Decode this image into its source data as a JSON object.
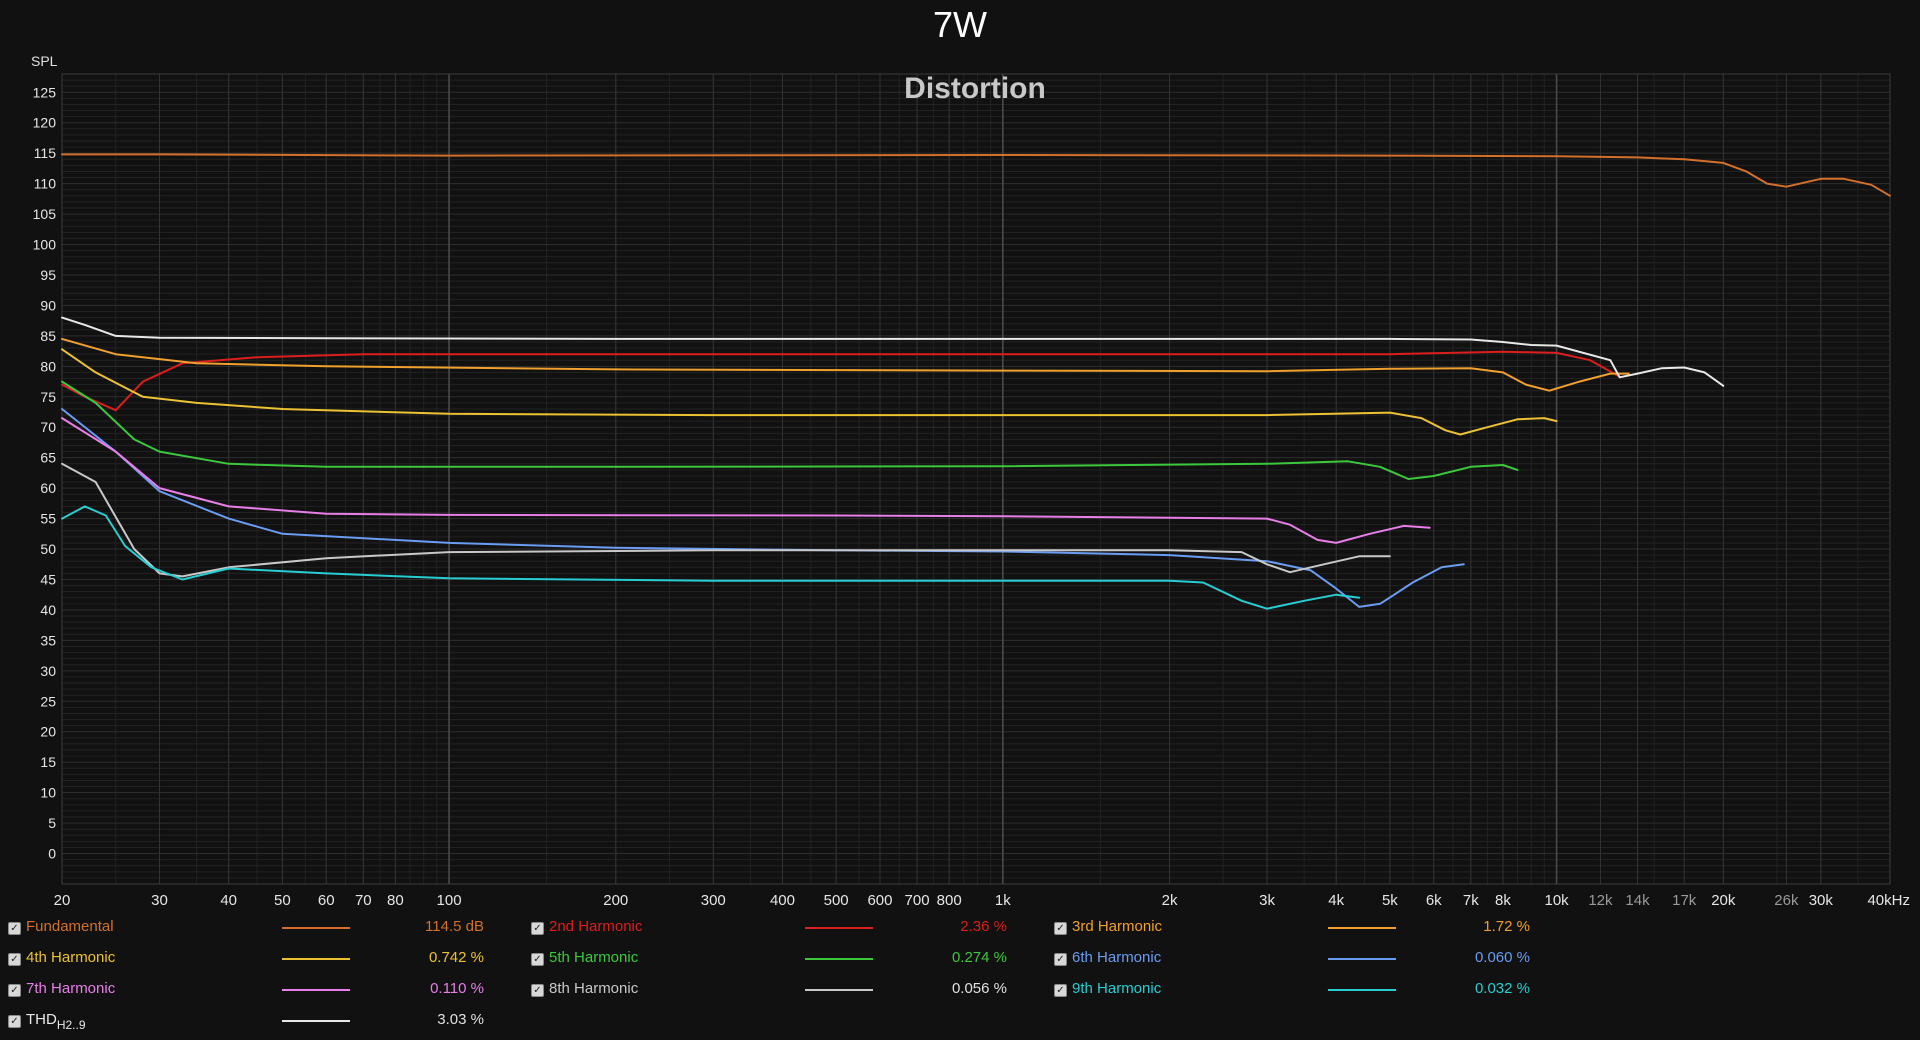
{
  "title": "7W",
  "chart_data": {
    "type": "line",
    "title": "Distortion",
    "ylabel": "SPL",
    "xlabel": "",
    "xscale": "log",
    "xlim": [
      20,
      40000
    ],
    "ylim": [
      -5,
      128
    ],
    "yticks": [
      0,
      5,
      10,
      15,
      20,
      25,
      30,
      35,
      40,
      45,
      50,
      55,
      60,
      65,
      70,
      75,
      80,
      85,
      90,
      95,
      100,
      105,
      110,
      115,
      120,
      125
    ],
    "xticks": [
      {
        "v": 20,
        "label": "20"
      },
      {
        "v": 30,
        "label": "30"
      },
      {
        "v": 40,
        "label": "40"
      },
      {
        "v": 50,
        "label": "50"
      },
      {
        "v": 60,
        "label": "60"
      },
      {
        "v": 70,
        "label": "70"
      },
      {
        "v": 80,
        "label": "80"
      },
      {
        "v": 100,
        "label": "100"
      },
      {
        "v": 200,
        "label": "200"
      },
      {
        "v": 300,
        "label": "300"
      },
      {
        "v": 400,
        "label": "400"
      },
      {
        "v": 500,
        "label": "500"
      },
      {
        "v": 600,
        "label": "600"
      },
      {
        "v": 700,
        "label": "700"
      },
      {
        "v": 800,
        "label": "800"
      },
      {
        "v": 1000,
        "label": "1k"
      },
      {
        "v": 2000,
        "label": "2k"
      },
      {
        "v": 3000,
        "label": "3k"
      },
      {
        "v": 4000,
        "label": "4k"
      },
      {
        "v": 5000,
        "label": "5k"
      },
      {
        "v": 6000,
        "label": "6k"
      },
      {
        "v": 7000,
        "label": "7k"
      },
      {
        "v": 8000,
        "label": "8k"
      },
      {
        "v": 10000,
        "label": "10k"
      },
      {
        "v": 12000,
        "label": "12k",
        "dim": true
      },
      {
        "v": 14000,
        "label": "14k",
        "dim": true
      },
      {
        "v": 17000,
        "label": "17k",
        "dim": true
      },
      {
        "v": 20000,
        "label": "20k"
      },
      {
        "v": 26000,
        "label": "26k",
        "dim": true
      },
      {
        "v": 30000,
        "label": "30k"
      },
      {
        "v": 40000,
        "label": "40kHz"
      }
    ],
    "grid": true,
    "legend_position": "bottom",
    "series": [
      {
        "name": "Fundamental",
        "color": "#d2702c",
        "value": "114.5 dB",
        "points": [
          [
            20,
            114.8
          ],
          [
            30,
            114.8
          ],
          [
            100,
            114.6
          ],
          [
            1000,
            114.7
          ],
          [
            5000,
            114.6
          ],
          [
            10000,
            114.5
          ],
          [
            14000,
            114.3
          ],
          [
            17000,
            114.0
          ],
          [
            20000,
            113.4
          ],
          [
            22000,
            112.0
          ],
          [
            24000,
            110.0
          ],
          [
            26000,
            109.5
          ],
          [
            30000,
            110.8
          ],
          [
            33000,
            110.8
          ],
          [
            37000,
            109.8
          ],
          [
            40000,
            108.0
          ]
        ]
      },
      {
        "name": "2nd Harmonic",
        "color": "#dc1e1e",
        "value": "2.36 %",
        "points": [
          [
            20,
            77.0
          ],
          [
            22,
            75.0
          ],
          [
            25,
            72.8
          ],
          [
            28,
            77.5
          ],
          [
            33,
            80.5
          ],
          [
            45,
            81.5
          ],
          [
            70,
            82.0
          ],
          [
            200,
            82.0
          ],
          [
            1000,
            82.0
          ],
          [
            5000,
            82.0
          ],
          [
            8000,
            82.4
          ],
          [
            10000,
            82.2
          ],
          [
            11500,
            81.0
          ],
          [
            13000,
            78.3
          ]
        ]
      },
      {
        "name": "3rd Harmonic",
        "color": "#f0a02d",
        "value": "1.72 %",
        "points": [
          [
            20,
            84.5
          ],
          [
            25,
            82.0
          ],
          [
            35,
            80.5
          ],
          [
            60,
            80.0
          ],
          [
            200,
            79.5
          ],
          [
            1000,
            79.3
          ],
          [
            3000,
            79.2
          ],
          [
            5000,
            79.6
          ],
          [
            7000,
            79.7
          ],
          [
            8000,
            79.0
          ],
          [
            8800,
            77.0
          ],
          [
            9700,
            76.0
          ],
          [
            11000,
            77.5
          ],
          [
            12500,
            78.8
          ],
          [
            13500,
            78.8
          ]
        ]
      },
      {
        "name": "4th Harmonic",
        "color": "#ecc232",
        "value": "0.742 %",
        "points": [
          [
            20,
            82.8
          ],
          [
            23,
            79.0
          ],
          [
            28,
            75.0
          ],
          [
            35,
            74.0
          ],
          [
            50,
            73.0
          ],
          [
            100,
            72.2
          ],
          [
            300,
            72.0
          ],
          [
            1000,
            72.0
          ],
          [
            3000,
            72.0
          ],
          [
            5000,
            72.4
          ],
          [
            5700,
            71.5
          ],
          [
            6300,
            69.5
          ],
          [
            6700,
            68.8
          ],
          [
            7500,
            70.0
          ],
          [
            8500,
            71.3
          ],
          [
            9500,
            71.5
          ],
          [
            10000,
            71.0
          ]
        ]
      },
      {
        "name": "5th Harmonic",
        "color": "#3cc83c",
        "value": "0.274 %",
        "points": [
          [
            20,
            77.5
          ],
          [
            23,
            74.0
          ],
          [
            27,
            68.0
          ],
          [
            30,
            66.0
          ],
          [
            40,
            64.0
          ],
          [
            60,
            63.5
          ],
          [
            200,
            63.5
          ],
          [
            1000,
            63.6
          ],
          [
            3000,
            64.0
          ],
          [
            4200,
            64.4
          ],
          [
            4800,
            63.5
          ],
          [
            5400,
            61.5
          ],
          [
            6000,
            62.0
          ],
          [
            7000,
            63.5
          ],
          [
            8000,
            63.8
          ],
          [
            8500,
            63.0
          ]
        ]
      },
      {
        "name": "6th Harmonic",
        "color": "#6a9cf2",
        "value": "0.060 %",
        "points": [
          [
            20,
            73.0
          ],
          [
            25,
            66.0
          ],
          [
            30,
            59.5
          ],
          [
            40,
            55.0
          ],
          [
            50,
            52.5
          ],
          [
            100,
            51.0
          ],
          [
            200,
            50.2
          ],
          [
            500,
            49.8
          ],
          [
            1000,
            49.6
          ],
          [
            2000,
            49.0
          ],
          [
            3000,
            48.0
          ],
          [
            3600,
            46.5
          ],
          [
            4000,
            43.5
          ],
          [
            4400,
            40.5
          ],
          [
            4800,
            41.0
          ],
          [
            5500,
            44.5
          ],
          [
            6200,
            47.0
          ],
          [
            6800,
            47.5
          ]
        ]
      },
      {
        "name": "7th Harmonic",
        "color": "#e87ee8",
        "value": "0.110 %",
        "points": [
          [
            20,
            71.5
          ],
          [
            25,
            66.0
          ],
          [
            30,
            60.0
          ],
          [
            40,
            57.0
          ],
          [
            60,
            55.8
          ],
          [
            100,
            55.6
          ],
          [
            500,
            55.5
          ],
          [
            1000,
            55.4
          ],
          [
            3000,
            55.0
          ],
          [
            3300,
            54.0
          ],
          [
            3700,
            51.5
          ],
          [
            4000,
            51.0
          ],
          [
            4600,
            52.5
          ],
          [
            5300,
            53.8
          ],
          [
            5900,
            53.5
          ]
        ]
      },
      {
        "name": "8th Harmonic",
        "color": "#c8c8c8",
        "value": "0.056 %",
        "points": [
          [
            20,
            64.0
          ],
          [
            23,
            61.0
          ],
          [
            27,
            50.0
          ],
          [
            30,
            46.0
          ],
          [
            33,
            45.5
          ],
          [
            40,
            47.0
          ],
          [
            60,
            48.5
          ],
          [
            100,
            49.5
          ],
          [
            300,
            49.8
          ],
          [
            1000,
            49.8
          ],
          [
            2000,
            49.8
          ],
          [
            2700,
            49.5
          ],
          [
            3000,
            47.5
          ],
          [
            3300,
            46.2
          ],
          [
            3800,
            47.5
          ],
          [
            4400,
            48.8
          ],
          [
            5000,
            48.8
          ]
        ]
      },
      {
        "name": "9th Harmonic",
        "color": "#28cdd2",
        "value": "0.032 %",
        "points": [
          [
            20,
            55.0
          ],
          [
            22,
            57.0
          ],
          [
            24,
            55.5
          ],
          [
            26,
            50.5
          ],
          [
            29,
            47.0
          ],
          [
            33,
            45.0
          ],
          [
            40,
            46.8
          ],
          [
            60,
            46.0
          ],
          [
            100,
            45.2
          ],
          [
            300,
            44.8
          ],
          [
            1000,
            44.8
          ],
          [
            2000,
            44.8
          ],
          [
            2300,
            44.5
          ],
          [
            2700,
            41.5
          ],
          [
            3000,
            40.2
          ],
          [
            3500,
            41.5
          ],
          [
            4000,
            42.5
          ],
          [
            4400,
            42.0
          ]
        ]
      },
      {
        "name": "THD",
        "subscript": "H2..9",
        "color": "#e8e8e8",
        "value": "3.03 %",
        "points": [
          [
            20,
            88.0
          ],
          [
            22,
            86.8
          ],
          [
            25,
            85.0
          ],
          [
            30,
            84.7
          ],
          [
            60,
            84.6
          ],
          [
            200,
            84.5
          ],
          [
            1000,
            84.5
          ],
          [
            5000,
            84.5
          ],
          [
            7000,
            84.4
          ],
          [
            8000,
            84.0
          ],
          [
            9000,
            83.5
          ],
          [
            10000,
            83.4
          ],
          [
            12500,
            81.0
          ],
          [
            13000,
            78.2
          ],
          [
            14000,
            78.8
          ],
          [
            15500,
            79.7
          ],
          [
            17000,
            79.8
          ],
          [
            18500,
            79.0
          ],
          [
            20000,
            76.8
          ]
        ]
      }
    ]
  }
}
